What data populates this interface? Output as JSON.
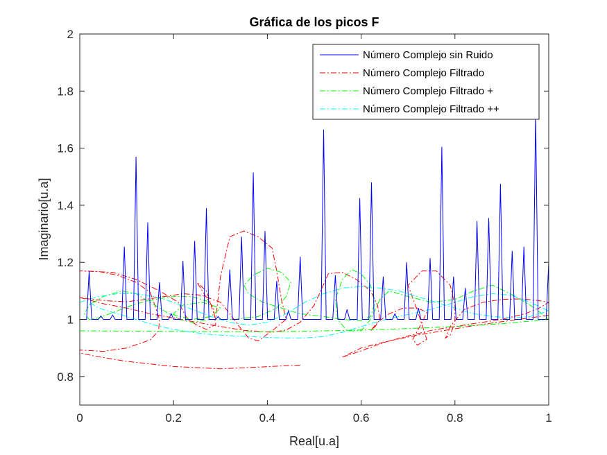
{
  "chart_data": {
    "type": "line",
    "title": "Gráfica de los picos F",
    "xlabel": "Real[u.a]",
    "ylabel": "Imaginario[u.a]",
    "xlim": [
      0,
      1
    ],
    "ylim": [
      0.7,
      2
    ],
    "xticks": [
      0,
      0.2,
      0.4,
      0.6,
      0.8,
      1
    ],
    "xtick_labels": [
      "0",
      "0.2",
      "0.4",
      "0.6",
      "0.8",
      "1"
    ],
    "yticks": [
      0.8,
      1.0,
      1.2,
      1.4,
      1.6,
      1.8,
      2.0
    ],
    "ytick_labels": [
      "0.8",
      "1",
      "1.2",
      "1.4",
      "1.6",
      "1.8",
      "2"
    ],
    "grid": false,
    "legend_position": "top-right",
    "series": [
      {
        "name": "Número Complejo sin Ruido",
        "color": "#0000ff",
        "style": "solid",
        "baseline": 1.0,
        "peak_half_width": 0.0055,
        "peaks": [
          [
            0.02,
            1.17
          ],
          [
            0.045,
            1.012
          ],
          [
            0.07,
            1.015
          ],
          [
            0.095,
            1.255
          ],
          [
            0.12,
            1.57
          ],
          [
            0.145,
            1.34
          ],
          [
            0.17,
            1.13
          ],
          [
            0.195,
            1.02
          ],
          [
            0.22,
            1.205
          ],
          [
            0.245,
            1.275
          ],
          [
            0.27,
            1.39
          ],
          [
            0.295,
            1.01
          ],
          [
            0.32,
            1.175
          ],
          [
            0.345,
            1.29
          ],
          [
            0.37,
            1.515
          ],
          [
            0.395,
            1.31
          ],
          [
            0.42,
            1.135
          ],
          [
            0.445,
            1.03
          ],
          [
            0.47,
            1.22
          ],
          [
            0.52,
            1.665
          ],
          [
            0.545,
            1.155
          ],
          [
            0.57,
            1.035
          ],
          [
            0.597,
            1.425
          ],
          [
            0.622,
            1.48
          ],
          [
            0.647,
            1.15
          ],
          [
            0.672,
            1.02
          ],
          [
            0.697,
            1.2
          ],
          [
            0.722,
            1.04
          ],
          [
            0.747,
            1.215
          ],
          [
            0.772,
            1.605
          ],
          [
            0.797,
            1.15
          ],
          [
            0.822,
            1.11
          ],
          [
            0.847,
            1.345
          ],
          [
            0.872,
            1.355
          ],
          [
            0.897,
            1.475
          ],
          [
            0.922,
            1.24
          ],
          [
            0.947,
            1.255
          ],
          [
            0.972,
            1.72
          ],
          [
            1.0,
            1.2
          ]
        ]
      },
      {
        "name": "Número Complejo Filtrado",
        "color": "#ff0000",
        "style": "dashdot",
        "points": [
          [
            0.47,
            0.84
          ],
          [
            0.38,
            0.833
          ],
          [
            0.3,
            0.827
          ],
          [
            0.2,
            0.835
          ],
          [
            0.1,
            0.853
          ],
          [
            0.03,
            0.872
          ],
          [
            0.0,
            0.883
          ],
          [
            0.0,
            0.893
          ],
          [
            0.05,
            0.888
          ],
          [
            0.1,
            0.9
          ],
          [
            0.15,
            0.928
          ],
          [
            0.168,
            0.96
          ],
          [
            0.17,
            1.0
          ],
          [
            0.16,
            1.05
          ],
          [
            0.15,
            1.095
          ],
          [
            0.12,
            1.13
          ],
          [
            0.08,
            1.155
          ],
          [
            0.04,
            1.168
          ],
          [
            0.0,
            1.17
          ],
          [
            0.07,
            1.165
          ],
          [
            0.12,
            1.14
          ],
          [
            0.17,
            1.1
          ],
          [
            0.21,
            1.06
          ],
          [
            0.23,
            1.0
          ],
          [
            0.25,
            0.98
          ],
          [
            0.27,
            0.965
          ],
          [
            0.29,
            0.982
          ],
          [
            0.285,
            1.04
          ],
          [
            0.265,
            1.09
          ],
          [
            0.25,
            1.13
          ],
          [
            0.27,
            1.1
          ],
          [
            0.28,
            1.05
          ],
          [
            0.29,
            1.0
          ],
          [
            0.3,
            1.15
          ],
          [
            0.32,
            1.29
          ],
          [
            0.35,
            1.31
          ],
          [
            0.38,
            1.29
          ],
          [
            0.41,
            1.25
          ],
          [
            0.42,
            1.17
          ],
          [
            0.43,
            1.07
          ],
          [
            0.44,
            1.0
          ],
          [
            0.41,
            0.96
          ],
          [
            0.38,
            0.925
          ],
          [
            0.36,
            0.935
          ],
          [
            0.34,
            0.975
          ],
          [
            0.32,
            1.02
          ],
          [
            0.3,
            1.06
          ],
          [
            0.26,
            1.085
          ],
          [
            0.22,
            1.09
          ],
          [
            0.18,
            1.08
          ],
          [
            0.14,
            1.07
          ],
          [
            0.1,
            1.062
          ],
          [
            0.06,
            1.065
          ],
          [
            0.02,
            1.072
          ],
          [
            0.0,
            1.077
          ],
          [
            0.05,
            1.055
          ],
          [
            0.1,
            1.04
          ],
          [
            0.15,
            1.02
          ],
          [
            0.2,
            1.005
          ],
          [
            0.25,
            0.99
          ],
          [
            0.3,
            0.975
          ],
          [
            0.35,
            0.962
          ],
          [
            0.41,
            0.955
          ],
          [
            0.44,
            0.963
          ],
          [
            0.47,
            0.99
          ],
          [
            0.5,
            1.05
          ],
          [
            0.53,
            1.16
          ],
          [
            0.56,
            1.165
          ],
          [
            0.59,
            1.14
          ],
          [
            0.62,
            1.1
          ],
          [
            0.635,
            1.05
          ],
          [
            0.64,
            1.0
          ],
          [
            0.63,
            0.975
          ],
          [
            0.62,
            0.96
          ],
          [
            0.635,
            0.99
          ],
          [
            0.66,
            1.02
          ],
          [
            0.69,
            1.04
          ],
          [
            0.72,
            1.04
          ],
          [
            0.74,
            1.025
          ],
          [
            0.73,
            0.99
          ],
          [
            0.72,
            0.96
          ],
          [
            0.71,
            0.93
          ],
          [
            0.72,
            0.91
          ],
          [
            0.74,
            0.93
          ],
          [
            0.72,
            1.03
          ],
          [
            0.7,
            1.12
          ],
          [
            0.73,
            1.17
          ],
          [
            0.76,
            1.17
          ],
          [
            0.79,
            1.12
          ],
          [
            0.8,
            1.05
          ],
          [
            0.8,
            0.99
          ],
          [
            0.79,
            0.945
          ],
          [
            0.78,
            0.935
          ],
          [
            0.79,
            0.975
          ],
          [
            0.82,
            1.035
          ],
          [
            0.86,
            1.06
          ],
          [
            0.9,
            1.07
          ],
          [
            0.94,
            1.072
          ],
          [
            0.97,
            1.068
          ],
          [
            1.0,
            1.06
          ],
          [
            0.98,
            1.04
          ],
          [
            0.95,
            1.02
          ],
          [
            0.9,
            1.0
          ],
          [
            0.85,
            0.988
          ],
          [
            0.8,
            0.975
          ],
          [
            0.75,
            0.962
          ],
          [
            0.7,
            0.942
          ],
          [
            0.65,
            0.92
          ],
          [
            0.6,
            0.89
          ],
          [
            0.56,
            0.868
          ],
          [
            0.6,
            0.9
          ],
          [
            0.66,
            0.925
          ],
          [
            0.72,
            0.945
          ],
          [
            0.78,
            0.962
          ],
          [
            0.84,
            0.978
          ],
          [
            0.9,
            0.992
          ],
          [
            0.95,
            1.003
          ],
          [
            1.0,
            1.015
          ]
        ]
      },
      {
        "name": "Número Complejo Filtrado +",
        "color": "#00ff00",
        "style": "dashdot",
        "points": [
          [
            0.0,
            0.96
          ],
          [
            0.1,
            0.959
          ],
          [
            0.2,
            0.958
          ],
          [
            0.3,
            0.957
          ],
          [
            0.4,
            0.957
          ],
          [
            0.47,
            0.958
          ],
          [
            0.52,
            0.96
          ],
          [
            0.6,
            0.963
          ],
          [
            0.7,
            0.968
          ],
          [
            0.8,
            0.975
          ],
          [
            0.9,
            0.985
          ],
          [
            1.0,
            1.0
          ],
          [
            0.97,
            1.04
          ],
          [
            0.93,
            1.08
          ],
          [
            0.88,
            1.12
          ],
          [
            0.84,
            1.1
          ],
          [
            0.8,
            1.07
          ],
          [
            0.75,
            1.06
          ],
          [
            0.7,
            1.08
          ],
          [
            0.66,
            1.1
          ],
          [
            0.64,
            1.07
          ],
          [
            0.62,
            1.0
          ],
          [
            0.6,
            0.96
          ],
          [
            0.57,
            0.96
          ],
          [
            0.55,
            1.0
          ],
          [
            0.545,
            1.07
          ],
          [
            0.56,
            1.14
          ],
          [
            0.58,
            1.175
          ],
          [
            0.6,
            1.16
          ],
          [
            0.62,
            1.12
          ],
          [
            0.63,
            1.06
          ],
          [
            0.62,
            1.01
          ],
          [
            0.6,
            0.995
          ],
          [
            0.56,
            1.0
          ],
          [
            0.52,
            1.01
          ],
          [
            0.47,
            1.02
          ],
          [
            0.43,
            1.04
          ],
          [
            0.39,
            1.06
          ],
          [
            0.36,
            1.09
          ],
          [
            0.35,
            1.12
          ],
          [
            0.37,
            1.155
          ],
          [
            0.4,
            1.18
          ],
          [
            0.43,
            1.165
          ],
          [
            0.45,
            1.13
          ],
          [
            0.44,
            1.08
          ],
          [
            0.42,
            1.04
          ],
          [
            0.38,
            1.01
          ],
          [
            0.33,
            1.0
          ],
          [
            0.28,
            1.0
          ],
          [
            0.24,
            0.99
          ],
          [
            0.21,
            1.0
          ],
          [
            0.2,
            1.02
          ],
          [
            0.22,
            1.05
          ],
          [
            0.26,
            1.06
          ],
          [
            0.3,
            1.04
          ],
          [
            0.28,
            1.01
          ],
          [
            0.24,
            1.0
          ],
          [
            0.19,
            1.02
          ],
          [
            0.15,
            1.06
          ],
          [
            0.12,
            1.09
          ],
          [
            0.09,
            1.1
          ],
          [
            0.05,
            1.08
          ],
          [
            0.02,
            1.05
          ],
          [
            0.01,
            1.02
          ],
          [
            0.02,
            1.0
          ],
          [
            0.04,
            1.005
          ],
          [
            0.08,
            1.03
          ],
          [
            0.12,
            1.055
          ],
          [
            0.16,
            1.07
          ],
          [
            0.2,
            1.08
          ],
          [
            0.24,
            1.08
          ],
          [
            0.27,
            1.065
          ],
          [
            0.28,
            1.045
          ]
        ]
      },
      {
        "name": "Número Complejo Filtrado ++",
        "color": "#00ffff",
        "style": "dashdot",
        "points": [
          [
            0.0,
            1.06
          ],
          [
            0.04,
            1.08
          ],
          [
            0.08,
            1.09
          ],
          [
            0.12,
            1.09
          ],
          [
            0.16,
            1.08
          ],
          [
            0.2,
            1.06
          ],
          [
            0.24,
            1.035
          ],
          [
            0.28,
            1.01
          ],
          [
            0.32,
            0.99
          ],
          [
            0.36,
            0.98
          ],
          [
            0.4,
            0.99
          ],
          [
            0.44,
            1.02
          ],
          [
            0.48,
            1.06
          ],
          [
            0.52,
            1.09
          ],
          [
            0.56,
            1.11
          ],
          [
            0.6,
            1.115
          ],
          [
            0.64,
            1.11
          ],
          [
            0.68,
            1.1
          ],
          [
            0.72,
            1.08
          ],
          [
            0.76,
            1.06
          ],
          [
            0.8,
            1.04
          ],
          [
            0.84,
            1.02
          ],
          [
            0.88,
            1.01
          ],
          [
            0.92,
            1.005
          ],
          [
            0.96,
            1.01
          ],
          [
            1.0,
            1.03
          ],
          [
            0.96,
            1.06
          ],
          [
            0.92,
            1.085
          ],
          [
            0.88,
            1.09
          ],
          [
            0.84,
            1.08
          ],
          [
            0.8,
            1.06
          ],
          [
            0.76,
            1.04
          ],
          [
            0.72,
            1.025
          ],
          [
            0.68,
            1.01
          ],
          [
            0.64,
            0.995
          ],
          [
            0.6,
            0.975
          ],
          [
            0.56,
            0.955
          ],
          [
            0.52,
            0.94
          ],
          [
            0.48,
            0.935
          ],
          [
            0.44,
            0.935
          ],
          [
            0.4,
            0.937
          ],
          [
            0.36,
            0.94
          ],
          [
            0.32,
            0.943
          ],
          [
            0.28,
            0.947
          ],
          [
            0.24,
            0.955
          ],
          [
            0.2,
            0.965
          ],
          [
            0.16,
            0.98
          ],
          [
            0.12,
            1.0
          ],
          [
            0.08,
            1.02
          ],
          [
            0.04,
            1.04
          ],
          [
            0.02,
            1.06
          ]
        ]
      }
    ]
  }
}
